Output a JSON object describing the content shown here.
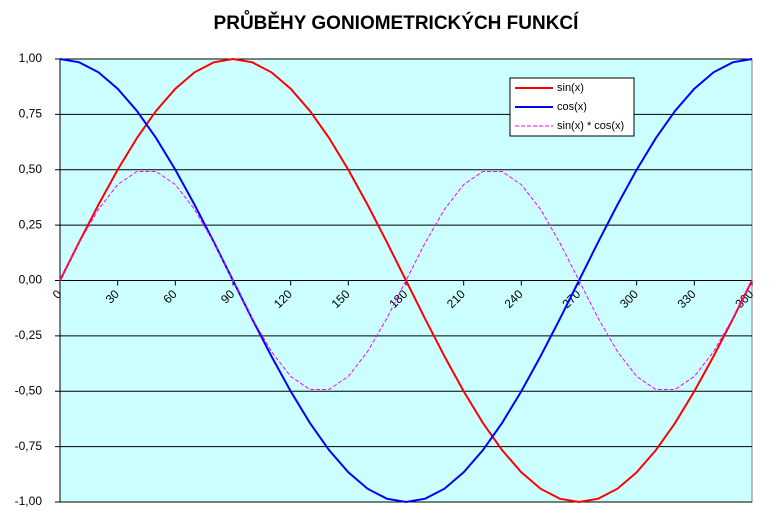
{
  "chart_data": {
    "type": "line",
    "title": "PRŮBĚHY  GONIOMETRICKÝCH  FUNKCÍ",
    "x": [
      0,
      10,
      20,
      30,
      40,
      50,
      60,
      70,
      80,
      90,
      100,
      110,
      120,
      130,
      140,
      150,
      160,
      170,
      180,
      190,
      200,
      210,
      220,
      230,
      240,
      250,
      260,
      270,
      280,
      290,
      300,
      310,
      320,
      330,
      340,
      350,
      360
    ],
    "series": [
      {
        "name": "sin(x)",
        "color": "#ff0000",
        "dashed": false,
        "values": [
          0,
          0.174,
          0.342,
          0.5,
          0.643,
          0.766,
          0.866,
          0.94,
          0.985,
          1,
          0.985,
          0.94,
          0.866,
          0.766,
          0.643,
          0.5,
          0.342,
          0.174,
          0,
          -0.174,
          -0.342,
          -0.5,
          -0.643,
          -0.766,
          -0.866,
          -0.94,
          -0.985,
          -1,
          -0.985,
          -0.94,
          -0.866,
          -0.766,
          -0.643,
          -0.5,
          -0.342,
          -0.174,
          0
        ]
      },
      {
        "name": "cos(x)",
        "color": "#0000ff",
        "dashed": false,
        "values": [
          1,
          0.985,
          0.94,
          0.866,
          0.766,
          0.643,
          0.5,
          0.342,
          0.174,
          0,
          -0.174,
          -0.342,
          -0.5,
          -0.643,
          -0.766,
          -0.866,
          -0.94,
          -0.985,
          -1,
          -0.985,
          -0.94,
          -0.866,
          -0.766,
          -0.643,
          -0.5,
          -0.342,
          -0.174,
          0,
          0.174,
          0.342,
          0.5,
          0.643,
          0.766,
          0.866,
          0.94,
          0.985,
          1
        ]
      },
      {
        "name": "sin(x) * cos(x)",
        "color": "#ff00ff",
        "dashed": true,
        "values": [
          0,
          0.171,
          0.321,
          0.433,
          0.492,
          0.492,
          0.433,
          0.321,
          0.171,
          0,
          -0.171,
          -0.321,
          -0.433,
          -0.492,
          -0.492,
          -0.433,
          -0.321,
          -0.171,
          0,
          0.171,
          0.321,
          0.433,
          0.492,
          0.492,
          0.433,
          0.321,
          0.171,
          0,
          -0.171,
          -0.321,
          -0.433,
          -0.492,
          -0.492,
          -0.433,
          -0.321,
          -0.171,
          0
        ]
      }
    ],
    "xlim": [
      0,
      360
    ],
    "xticks": [
      0,
      30,
      60,
      90,
      120,
      150,
      180,
      210,
      240,
      270,
      300,
      330,
      360
    ],
    "ylim": [
      -1,
      1
    ],
    "yticks": [
      {
        "value": -1,
        "label": "-1,00"
      },
      {
        "value": -0.75,
        "label": "-0,75"
      },
      {
        "value": -0.5,
        "label": "-0,50"
      },
      {
        "value": -0.25,
        "label": "-0,25"
      },
      {
        "value": 0,
        "label": "0,00"
      },
      {
        "value": 0.25,
        "label": "0,25"
      },
      {
        "value": 0.5,
        "label": "0,50"
      },
      {
        "value": 0.75,
        "label": "0,75"
      },
      {
        "value": 1,
        "label": "1,00"
      }
    ],
    "grid": true,
    "background": "#ccffff"
  }
}
